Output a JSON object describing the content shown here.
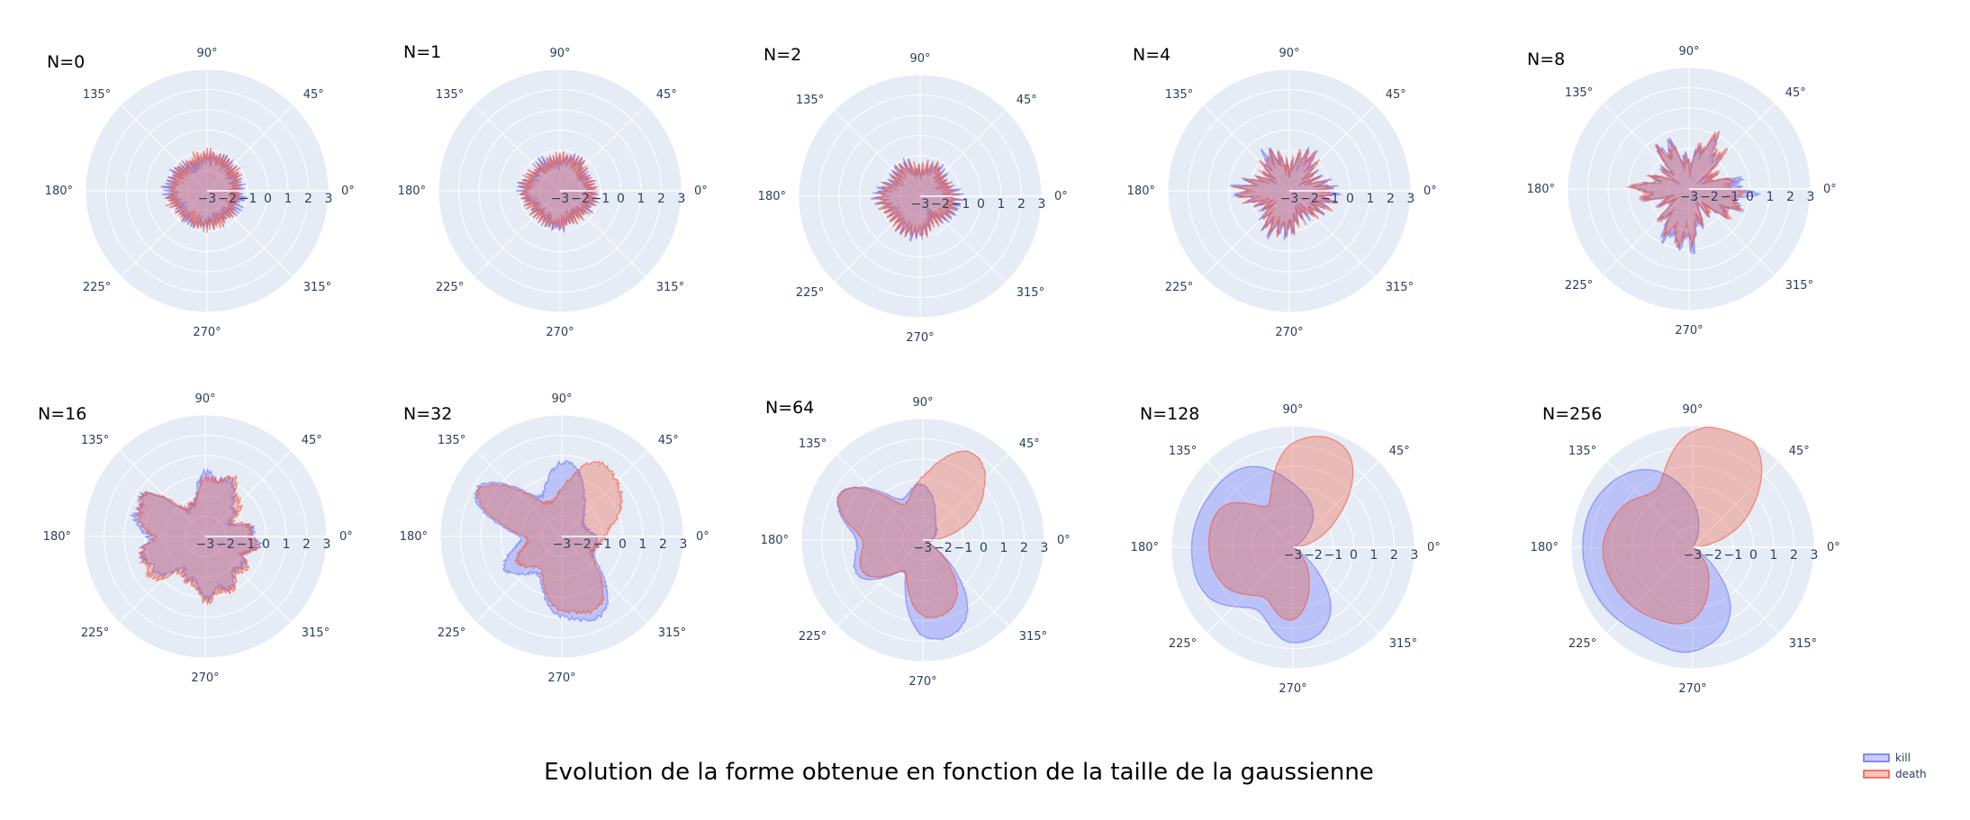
{
  "chart_data": {
    "type": "polar-area",
    "title": "Evolution de la forme obtenue en fonction de la taille de la gaussienne",
    "angular_tick_labels": [
      "0°",
      "45°",
      "90°",
      "135°",
      "180°",
      "225°",
      "270°",
      "315°"
    ],
    "radial_tick_labels": [
      "−3",
      "−2",
      "−1",
      "0",
      "1",
      "2",
      "3"
    ],
    "radial_range": [
      -3,
      3
    ],
    "angular_direction": "counterclockwise",
    "grid": true,
    "legend_position": "bottom-right",
    "series": [
      {
        "name": "kill",
        "color": "#636efa"
      },
      {
        "name": "death",
        "color": "#ef553b"
      }
    ],
    "subplots": [
      {
        "title": "N=0",
        "kill": {
          "angles": [
            0,
            30,
            60,
            90,
            120,
            150,
            180,
            210,
            240,
            270,
            300,
            330
          ],
          "r": [
            1.1,
            1.0,
            1.2,
            1.1,
            1.0,
            1.2,
            1.3,
            1.1,
            1.2,
            1.1,
            1.0,
            1.1
          ]
        },
        "death": {
          "angles": [
            0,
            30,
            60,
            90,
            120,
            150,
            180,
            210,
            240,
            270,
            300,
            330
          ],
          "r": [
            1.0,
            1.1,
            1.1,
            1.2,
            1.1,
            1.1,
            1.2,
            1.2,
            1.1,
            1.2,
            1.1,
            1.0
          ]
        }
      },
      {
        "title": "N=1",
        "kill": {
          "angles": [
            0,
            30,
            60,
            90,
            120,
            150,
            180,
            210,
            240,
            270,
            300,
            330
          ],
          "r": [
            1.1,
            0.9,
            1.2,
            1.0,
            1.1,
            1.0,
            1.3,
            1.0,
            1.1,
            1.2,
            0.9,
            1.1
          ]
        },
        "death": {
          "angles": [
            0,
            30,
            60,
            90,
            120,
            150,
            180,
            210,
            240,
            270,
            300,
            330
          ],
          "r": [
            1.1,
            1.0,
            1.1,
            1.1,
            1.0,
            1.1,
            1.2,
            1.1,
            1.1,
            1.1,
            1.0,
            1.1
          ]
        }
      },
      {
        "title": "N=2",
        "kill": {
          "angles": [
            0,
            30,
            60,
            90,
            120,
            150,
            180,
            210,
            240,
            270,
            300,
            330
          ],
          "r": [
            1.2,
            0.9,
            1.1,
            0.8,
            1.2,
            1.0,
            1.4,
            1.0,
            1.2,
            1.3,
            0.8,
            1.2
          ]
        },
        "death": {
          "angles": [
            0,
            30,
            60,
            90,
            120,
            150,
            180,
            210,
            240,
            270,
            300,
            330
          ],
          "r": [
            1.1,
            0.9,
            1.1,
            0.9,
            1.1,
            1.0,
            1.3,
            1.1,
            1.2,
            1.2,
            0.9,
            1.1
          ]
        }
      },
      {
        "title": "N=4",
        "kill": {
          "angles": [
            0,
            30,
            60,
            90,
            120,
            150,
            180,
            210,
            240,
            270,
            300,
            330
          ],
          "r": [
            1.4,
            0.8,
            1.3,
            0.7,
            1.4,
            0.9,
            1.7,
            0.9,
            1.4,
            1.3,
            0.8,
            1.2
          ]
        },
        "death": {
          "angles": [
            0,
            30,
            60,
            90,
            120,
            150,
            180,
            210,
            240,
            270,
            300,
            330
          ],
          "r": [
            1.3,
            0.8,
            1.4,
            0.8,
            1.3,
            0.9,
            1.6,
            0.9,
            1.3,
            1.2,
            0.9,
            1.2
          ]
        }
      },
      {
        "title": "N=8",
        "kill": {
          "angles": [
            0,
            30,
            60,
            90,
            120,
            150,
            180,
            210,
            240,
            270,
            300,
            330
          ],
          "r": [
            1.9,
            0.7,
            1.7,
            0.9,
            1.6,
            0.8,
            1.6,
            0.8,
            1.6,
            1.9,
            0.7,
            1.6
          ]
        },
        "death": {
          "angles": [
            0,
            30,
            60,
            90,
            120,
            150,
            180,
            210,
            240,
            270,
            300,
            330
          ],
          "r": [
            1.6,
            0.8,
            1.9,
            0.8,
            1.5,
            0.9,
            1.7,
            0.8,
            1.5,
            1.6,
            0.8,
            1.5
          ]
        }
      },
      {
        "title": "N=16",
        "kill": {
          "angles": [
            0,
            30,
            60,
            90,
            120,
            150,
            180,
            210,
            240,
            270,
            300,
            330
          ],
          "r": [
            1.8,
            1.0,
            1.9,
            2.1,
            1.0,
            2.6,
            2.1,
            2.2,
            1.4,
            2.0,
            1.8,
            1.5
          ]
        },
        "death": {
          "angles": [
            0,
            30,
            60,
            90,
            120,
            150,
            180,
            210,
            240,
            270,
            300,
            330
          ],
          "r": [
            1.7,
            1.2,
            2.1,
            1.9,
            1.1,
            2.6,
            1.9,
            2.4,
            1.5,
            2.1,
            1.9,
            1.6
          ]
        }
      },
      {
        "title": "N=32",
        "kill": {
          "angles": [
            0,
            30,
            60,
            90,
            120,
            150,
            180,
            210,
            240,
            270,
            300,
            330
          ],
          "r": [
            1.2,
            0.8,
            1.6,
            2.6,
            1.5,
            3.4,
            1.5,
            2.2,
            1.6,
            2.8,
            2.9,
            1.3
          ]
        },
        "death": {
          "angles": [
            0,
            30,
            60,
            90,
            120,
            150,
            180,
            210,
            240,
            270,
            300,
            330
          ],
          "r": [
            1.5,
            2.3,
            2.9,
            1.7,
            1.3,
            3.3,
            1.3,
            1.7,
            1.4,
            2.6,
            2.6,
            1.2
          ]
        }
      },
      {
        "title": "N=64",
        "kill": {
          "angles": [
            0,
            30,
            60,
            90,
            120,
            150,
            180,
            210,
            240,
            270,
            300,
            330
          ],
          "r": [
            0.3,
            0.5,
            0.9,
            1.9,
            1.6,
            3.3,
            2.3,
            2.5,
            1.3,
            3.3,
            3.0,
            0.4
          ]
        },
        "death": {
          "angles": [
            0,
            30,
            60,
            90,
            120,
            150,
            180,
            210,
            240,
            270,
            300,
            330
          ],
          "r": [
            0.4,
            2.2,
            3.5,
            2.2,
            1.4,
            3.3,
            2.1,
            2.3,
            1.3,
            2.6,
            2.3,
            0.4
          ]
        }
      },
      {
        "title": "N=128",
        "kill": {
          "angles": [
            0,
            30,
            60,
            90,
            120,
            150,
            180,
            210,
            240,
            270,
            300,
            330
          ],
          "r": [
            0.0,
            0.2,
            1.4,
            2.2,
            3.2,
            3.4,
            3.5,
            3.4,
            2.5,
            3.3,
            2.6,
            0.0
          ]
        },
        "death": {
          "angles": [
            0,
            30,
            60,
            90,
            120,
            150,
            180,
            210,
            240,
            270,
            300,
            330
          ],
          "r": [
            0.0,
            1.6,
            3.8,
            3.6,
            1.7,
            2.8,
            2.9,
            2.7,
            2.0,
            2.5,
            1.1,
            0.0
          ]
        }
      },
      {
        "title": "N=256",
        "kill": {
          "angles": [
            0,
            30,
            60,
            90,
            120,
            150,
            180,
            210,
            240,
            270,
            300,
            330
          ],
          "r": [
            0.0,
            0.0,
            0.2,
            1.6,
            3.1,
            3.7,
            3.8,
            3.7,
            3.5,
            3.6,
            2.6,
            0.0
          ]
        },
        "death": {
          "angles": [
            0,
            30,
            60,
            90,
            120,
            150,
            180,
            210,
            240,
            270,
            300,
            330
          ],
          "r": [
            0.0,
            2.2,
            4.2,
            4.0,
            2.4,
            2.8,
            3.1,
            3.0,
            2.8,
            2.5,
            1.1,
            0.0
          ]
        }
      }
    ]
  }
}
